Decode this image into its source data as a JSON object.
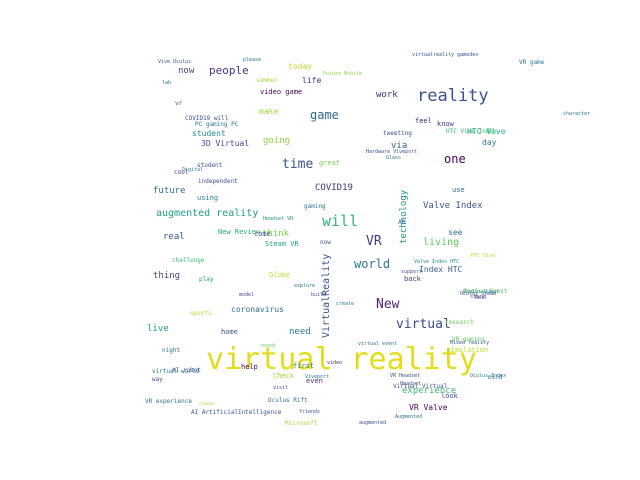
{
  "words": [
    {
      "text": "virtual reality",
      "color": "#e3dc1b",
      "vertical": false
    },
    {
      "text": "reality",
      "color": "#3b528b",
      "vertical": false
    },
    {
      "text": "VR",
      "color": "#443a83",
      "vertical": false
    },
    {
      "text": "will",
      "color": "#35b779",
      "vertical": false
    },
    {
      "text": "virtual",
      "color": "#3e4a89",
      "vertical": false
    },
    {
      "text": "New",
      "color": "#482475",
      "vertical": false
    },
    {
      "text": "world",
      "color": "#2a788e",
      "vertical": false
    },
    {
      "text": "game",
      "color": "#31688e",
      "vertical": false
    },
    {
      "text": "time",
      "color": "#3b528b",
      "vertical": false
    },
    {
      "text": "one",
      "color": "#440154",
      "vertical": false
    },
    {
      "text": "people",
      "color": "#46327e",
      "vertical": false
    },
    {
      "text": "augmented reality",
      "color": "#1f9e89",
      "vertical": false
    },
    {
      "text": "living",
      "color": "#5ec962",
      "vertical": false
    },
    {
      "text": "VirtualReality",
      "color": "#3b528b",
      "vertical": true
    },
    {
      "text": "technology",
      "color": "#21918c",
      "vertical": true
    },
    {
      "text": "now",
      "color": "#3e4989",
      "vertical": false
    },
    {
      "text": "work",
      "color": "#482878",
      "vertical": false
    },
    {
      "text": "via",
      "color": "#31688e",
      "vertical": false
    },
    {
      "text": "future",
      "color": "#2c728e",
      "vertical": false
    },
    {
      "text": "real",
      "color": "#3b528b",
      "vertical": false
    },
    {
      "text": "thing",
      "color": "#414487",
      "vertical": false
    },
    {
      "text": "COVID19",
      "color": "#46337e",
      "vertical": false
    },
    {
      "text": "need",
      "color": "#2a788e",
      "vertical": false
    },
    {
      "text": "live",
      "color": "#1fa188",
      "vertical": false
    },
    {
      "text": "think",
      "color": "#7ad151",
      "vertical": false
    },
    {
      "text": "going",
      "color": "#90d743",
      "vertical": false
    },
    {
      "text": "Valve Index",
      "color": "#3b528b",
      "vertical": false
    },
    {
      "text": "Index HTC",
      "color": "#365c8d",
      "vertical": false
    },
    {
      "text": "experience",
      "color": "#3dbc74",
      "vertical": false
    },
    {
      "text": "VR Valve",
      "color": "#440154",
      "vertical": false
    },
    {
      "text": "today",
      "color": "#bddf26",
      "vertical": false
    },
    {
      "text": "life",
      "color": "#472c7a",
      "vertical": false
    },
    {
      "text": "make",
      "color": "#a5db36",
      "vertical": false
    },
    {
      "text": "HTC Vive",
      "color": "#2ab07f",
      "vertical": false
    },
    {
      "text": "day",
      "color": "#2a788e",
      "vertical": false
    },
    {
      "text": "see",
      "color": "#2d708e",
      "vertical": false
    },
    {
      "text": "use",
      "color": "#31688e",
      "vertical": false
    },
    {
      "text": "way",
      "color": "#3b528b",
      "vertical": false
    },
    {
      "text": "back",
      "color": "#443b84",
      "vertical": false
    },
    {
      "text": "look",
      "color": "#3e4989",
      "vertical": false
    },
    {
      "text": "using",
      "color": "#277f8e",
      "vertical": false
    },
    {
      "text": "student",
      "color": "#23898e",
      "vertical": false
    },
    {
      "text": "3D Virtual",
      "color": "#3e4a89",
      "vertical": false
    },
    {
      "text": "know",
      "color": "#46327e",
      "vertical": false
    },
    {
      "text": "feel",
      "color": "#482071",
      "vertical": false
    },
    {
      "text": "first",
      "color": "#287d8e",
      "vertical": false
    },
    {
      "text": "help",
      "color": "#440154",
      "vertical": false
    },
    {
      "text": "even",
      "color": "#472d7b",
      "vertical": false
    },
    {
      "text": "home",
      "color": "#3b528b",
      "vertical": false
    },
    {
      "text": "coronavirus",
      "color": "#2d708e",
      "vertical": false
    },
    {
      "text": "simulation",
      "color": "#b5de2b",
      "vertical": false
    },
    {
      "text": "Steam VR",
      "color": "#20a386",
      "vertical": false
    },
    {
      "text": "New Review",
      "color": "#25ab82",
      "vertical": false
    },
    {
      "text": "come",
      "color": "#3b528b",
      "vertical": false
    },
    {
      "text": "great",
      "color": "#75d054",
      "vertical": false
    },
    {
      "text": "video game",
      "color": "#440154",
      "vertical": false
    },
    {
      "text": "Check",
      "color": "#a0da39",
      "vertical": false
    },
    {
      "text": "Globe",
      "color": "#b5de2b",
      "vertical": false
    },
    {
      "text": "vr",
      "color": "#3e4989",
      "vertical": false
    },
    {
      "text": "play",
      "color": "#1f9a8a",
      "vertical": false
    },
    {
      "text": "gaming",
      "color": "#2c728e",
      "vertical": false
    },
    {
      "text": "VR experience",
      "color": "#2c728e",
      "vertical": false
    },
    {
      "text": "Oculus Quest",
      "color": "#5ec962",
      "vertical": false
    },
    {
      "text": "Oculus Rift",
      "color": "#2a788e",
      "vertical": false
    },
    {
      "text": "Microsoft",
      "color": "#a2da37",
      "vertical": false
    },
    {
      "text": "AR",
      "color": "#31688e",
      "vertical": false
    },
    {
      "text": "research",
      "color": "#6ccd5a",
      "vertical": false
    },
    {
      "text": "student",
      "color": "#3b528b",
      "vertical": false
    },
    {
      "text": "please",
      "color": "#2a788e",
      "vertical": false
    },
    {
      "text": "character",
      "color": "#2a788e",
      "vertical": false
    },
    {
      "text": "mind",
      "color": "#2a788e",
      "vertical": false
    },
    {
      "text": "cool",
      "color": "#46327e",
      "vertical": false
    },
    {
      "text": "night",
      "color": "#2a788e",
      "vertical": false
    },
    {
      "text": "sports",
      "color": "#b5de2b",
      "vertical": false
    },
    {
      "text": "challenge",
      "color": "#3dbc74",
      "vertical": false
    },
    {
      "text": "support",
      "color": "#3b528b",
      "vertical": false
    },
    {
      "text": "store",
      "color": "#3b528b",
      "vertical": false
    },
    {
      "text": "create",
      "color": "#2a788e",
      "vertical": false
    },
    {
      "text": "build",
      "color": "#3b528b",
      "vertical": false
    },
    {
      "text": "round",
      "color": "#5ec962",
      "vertical": false
    },
    {
      "text": "friends",
      "color": "#3b528b",
      "vertical": false
    },
    {
      "text": "class",
      "color": "#a0da39",
      "vertical": false
    },
    {
      "text": "model",
      "color": "#3e4989",
      "vertical": false
    },
    {
      "text": "video",
      "color": "#46327e",
      "vertical": false
    },
    {
      "text": "virtualreality gamedev",
      "color": "#3b528b",
      "vertical": false
    },
    {
      "text": "Valve Index HTC",
      "color": "#21918c",
      "vertical": false
    },
    {
      "text": "Oculus Steam",
      "color": "#3b528b",
      "vertical": false
    },
    {
      "text": "HTC Vive Index",
      "color": "#35b779",
      "vertical": false
    },
    {
      "text": "PC gaming PC",
      "color": "#2a788e",
      "vertical": false
    },
    {
      "text": "COVID19 will",
      "color": "#3b528b",
      "vertical": false
    },
    {
      "text": "Future Mobile",
      "color": "#90d743",
      "vertical": false
    },
    {
      "text": "Vive Oculus",
      "color": "#3b528b",
      "vertical": false
    },
    {
      "text": "Oculus Quest",
      "color": "#2a788e",
      "vertical": false
    },
    {
      "text": "AI ArtificialIntelligence",
      "color": "#3b528b",
      "vertical": false
    },
    {
      "text": "Digital",
      "color": "#2a788e",
      "vertical": false
    },
    {
      "text": "Augmented",
      "color": "#2a788e",
      "vertical": false
    },
    {
      "text": "Headset VR",
      "color": "#21918c",
      "vertical": false
    },
    {
      "text": "HTC Vive",
      "color": "#b5de2b",
      "vertical": false
    },
    {
      "text": "Mixed reality",
      "color": "#3b528b",
      "vertical": false
    },
    {
      "text": "VR Headset",
      "color": "#3b528b",
      "vertical": false
    },
    {
      "text": "virtual world",
      "color": "#2a788e",
      "vertical": false
    },
    {
      "text": "AI robot",
      "color": "#3b528b",
      "vertical": false
    },
    {
      "text": "Viveport",
      "color": "#2a788e",
      "vertical": false
    },
    {
      "text": "Virtual Virtual",
      "color": "#3b528b",
      "vertical": false
    },
    {
      "text": "augmented",
      "color": "#3b528b",
      "vertical": false
    },
    {
      "text": "VR gaming",
      "color": "#5ec962",
      "vertical": false
    },
    {
      "text": "summer",
      "color": "#a0da39",
      "vertical": false
    },
    {
      "text": "tweeting",
      "color": "#3b528b",
      "vertical": false
    },
    {
      "text": "Oculus Index",
      "color": "#2a788e",
      "vertical": false
    },
    {
      "text": "VR game",
      "color": "#2a788e",
      "vertical": false
    },
    {
      "text": "explore",
      "color": "#2a788e",
      "vertical": false
    },
    {
      "text": "Real",
      "color": "#3b528b",
      "vertical": false
    },
    {
      "text": "Glass",
      "color": "#2a788e",
      "vertical": false
    },
    {
      "text": "independent",
      "color": "#3b528b",
      "vertical": false
    },
    {
      "text": "Headset",
      "color": "#3b528b",
      "vertical": false
    },
    {
      "text": "virtual event",
      "color": "#2a788e",
      "vertical": false
    },
    {
      "text": "visit",
      "color": "#3b528b",
      "vertical": false
    },
    {
      "text": "Hardware Viveport",
      "color": "#3b528b",
      "vertical": false
    },
    {
      "text": "lab",
      "color": "#2a788e",
      "vertical": false
    },
    {
      "text": "now",
      "color": "#3b528b",
      "vertical": false
    }
  ]
}
